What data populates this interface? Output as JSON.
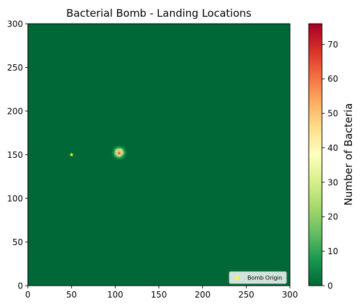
{
  "chart_data": {
    "type": "heatmap",
    "title": "Bacterial Bomb - Landing Locations",
    "xlim": [
      0,
      300
    ],
    "ylim": [
      0,
      300
    ],
    "xticks": [
      "0",
      "50",
      "100",
      "150",
      "200",
      "250",
      "300"
    ],
    "yticks": [
      "0",
      "50",
      "100",
      "150",
      "200",
      "250",
      "300"
    ],
    "grid": false,
    "colormap": "RdYlGn_r",
    "colorbar": {
      "label": "Number of Bacteria",
      "min": 0,
      "max": 76,
      "ticks": [
        "0",
        "10",
        "20",
        "30",
        "40",
        "50",
        "60",
        "70"
      ]
    },
    "background_value": 0,
    "cluster": {
      "center": [
        104,
        152
      ],
      "peak_value": 76,
      "spread": 3.2,
      "extent": 9
    },
    "bomb_origin": {
      "x": 50,
      "y": 150,
      "marker": "star",
      "color": "#ffff00"
    },
    "legend": {
      "entries": [
        "Bomb Origin"
      ],
      "placement": "lower-right"
    }
  }
}
